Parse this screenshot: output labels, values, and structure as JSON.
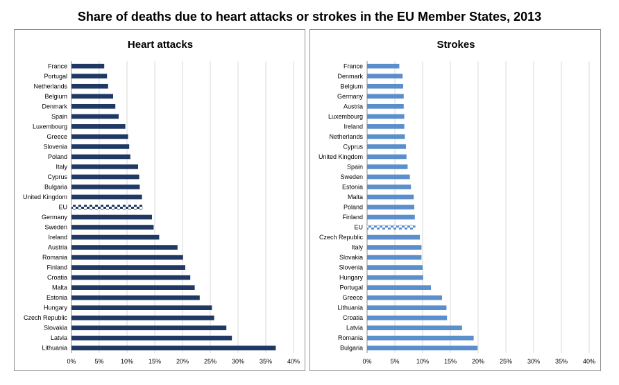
{
  "page_title": "Share of deaths due to heart attacks or strokes in the EU Member States, 2013",
  "colors": {
    "heart": "#1f3864",
    "stroke": "#5b8fcb",
    "eu_highlight_heart": "#ffffff",
    "eu_highlight_stroke": "#ffffff"
  },
  "chart_data": [
    {
      "type": "bar",
      "orientation": "horizontal",
      "title": "Heart attacks",
      "xlabel": "",
      "ylabel": "",
      "xlim": [
        0,
        40
      ],
      "x_ticks": [
        "0%",
        "5%",
        "10%",
        "15%",
        "20%",
        "25%",
        "30%",
        "35%",
        "40%"
      ],
      "grid": true,
      "highlight_category": "EU",
      "categories": [
        "France",
        "Portugal",
        "Netherlands",
        "Belgium",
        "Denmark",
        "Spain",
        "Luxembourg",
        "Greece",
        "Slovenia",
        "Poland",
        "Italy",
        "Cyprus",
        "Bulgaria",
        "United Kingdom",
        "EU",
        "Germany",
        "Sweden",
        "Ireland",
        "Austria",
        "Romania",
        "Finland",
        "Croatia",
        "Malta",
        "Estonia",
        "Hungary",
        "Czech Republic",
        "Slovakia",
        "Latvia",
        "Lithuania"
      ],
      "values": [
        5.9,
        6.4,
        6.6,
        7.5,
        7.9,
        8.5,
        9.7,
        10.2,
        10.4,
        10.6,
        12.0,
        12.2,
        12.3,
        12.7,
        12.8,
        14.5,
        14.8,
        15.8,
        19.1,
        20.1,
        20.5,
        21.4,
        22.2,
        23.1,
        25.3,
        25.7,
        27.9,
        28.9,
        36.8
      ]
    },
    {
      "type": "bar",
      "orientation": "horizontal",
      "title": "Strokes",
      "xlabel": "",
      "ylabel": "",
      "xlim": [
        0,
        40
      ],
      "x_ticks": [
        "0%",
        "5%",
        "10%",
        "15%",
        "20%",
        "25%",
        "30%",
        "35%",
        "40%"
      ],
      "grid": true,
      "highlight_category": "EU",
      "categories": [
        "France",
        "Denmark",
        "Belgium",
        "Germany",
        "Austria",
        "Luxembourg",
        "Ireland",
        "Netherlands",
        "Cyprus",
        "United Kingdom",
        "Spain",
        "Sweden",
        "Estonia",
        "Malta",
        "Poland",
        "Finland",
        "EU",
        "Czech Republic",
        "Italy",
        "Slovakia",
        "Slovenia",
        "Hungary",
        "Portugal",
        "Greece",
        "Lithuania",
        "Croatia",
        "Latvia",
        "Romania",
        "Bulgaria"
      ],
      "values": [
        5.8,
        6.4,
        6.5,
        6.6,
        6.6,
        6.7,
        6.7,
        6.8,
        7.0,
        7.1,
        7.3,
        7.7,
        7.9,
        8.4,
        8.5,
        8.6,
        8.7,
        9.5,
        9.8,
        9.8,
        10.0,
        10.1,
        11.5,
        13.5,
        14.3,
        14.4,
        17.1,
        19.2,
        19.9
      ]
    }
  ]
}
